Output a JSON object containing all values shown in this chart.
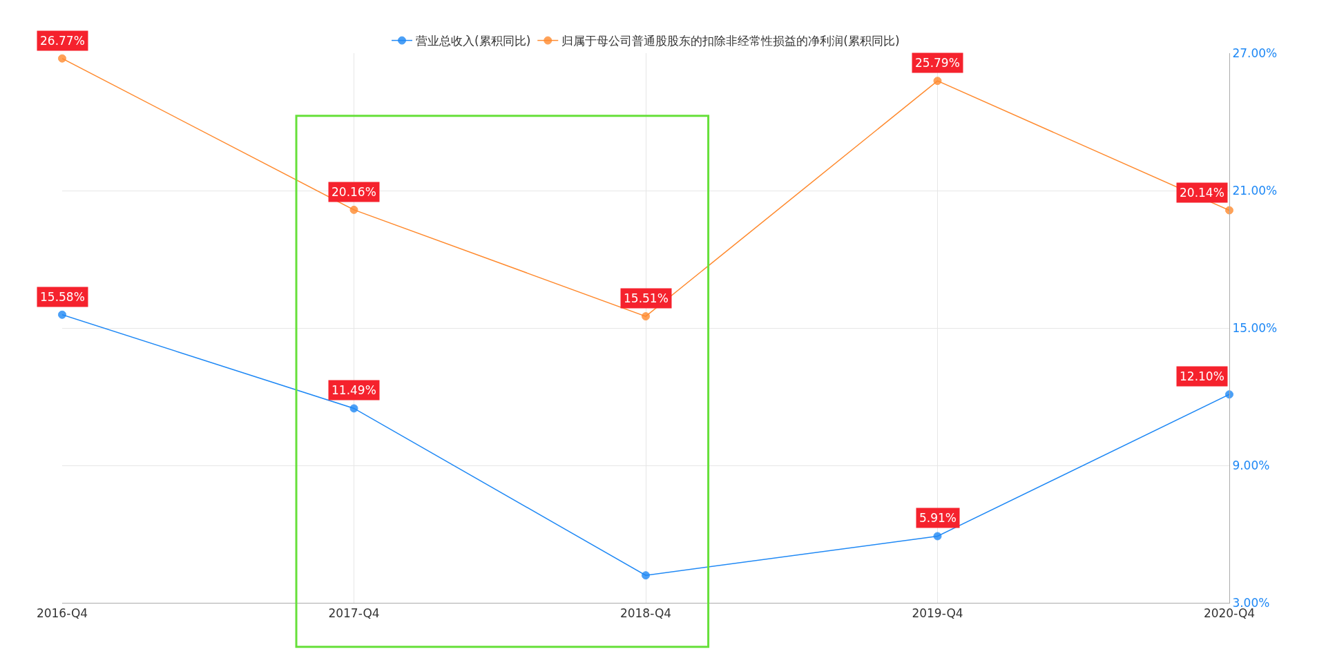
{
  "chart_data": {
    "type": "line",
    "categories": [
      "2016-Q4",
      "2017-Q4",
      "2018-Q4",
      "2019-Q4",
      "2020-Q4"
    ],
    "series": [
      {
        "name": "营业总收入(累积同比)",
        "color": "#1e88f5",
        "values": [
          15.58,
          11.49,
          4.2,
          5.91,
          12.1
        ],
        "value_labels": [
          "15.58%",
          "11.49%",
          null,
          "5.91%",
          "12.10%"
        ]
      },
      {
        "name": "归属于母公司普通股股东的扣除非经常性损益的净利润(累积同比)",
        "color": "#ff8a2e",
        "values": [
          26.77,
          20.16,
          15.51,
          25.79,
          20.14
        ],
        "value_labels": [
          "26.77%",
          "20.16%",
          "15.51%",
          "25.79%",
          "20.14%"
        ]
      }
    ],
    "ylim": [
      3,
      27
    ],
    "yticks": [
      {
        "value": 3,
        "label": "3.00%"
      },
      {
        "value": 9,
        "label": "9.00%"
      },
      {
        "value": 15,
        "label": "15.00%"
      },
      {
        "value": 21,
        "label": "21.00%"
      },
      {
        "value": 27,
        "label": "27.00%"
      }
    ],
    "grid": true,
    "legend": "top",
    "marker": "circle",
    "line_style": "solid"
  }
}
